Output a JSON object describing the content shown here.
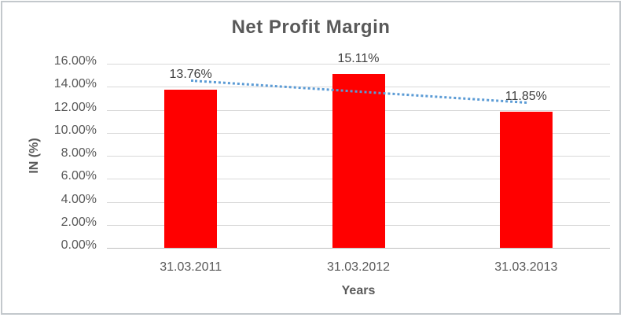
{
  "chart_data": {
    "type": "bar",
    "title": "Net Profit Margin",
    "xlabel": "Years",
    "ylabel": "IN (%)",
    "categories": [
      "31.03.2011",
      "31.03.2012",
      "31.03.2013"
    ],
    "values": [
      13.76,
      15.11,
      11.85
    ],
    "data_labels": [
      "13.76%",
      "15.11%",
      "11.85%"
    ],
    "ylim": [
      0,
      16
    ],
    "ytick_step": 2,
    "ytick_labels": [
      "0.00%",
      "2.00%",
      "4.00%",
      "6.00%",
      "8.00%",
      "10.00%",
      "12.00%",
      "14.00%",
      "16.00%"
    ],
    "grid": true,
    "legend": "none",
    "bar_color": "#FF0000",
    "trendline": {
      "type": "linear",
      "style": "dotted",
      "color": "#5B9BD5",
      "start_value_pct": 14.53,
      "end_value_pct": 12.62
    }
  },
  "colors": {
    "title_text": "#595959",
    "axis_text": "#595959",
    "data_label_text": "#404040",
    "gridline": "#D9D9D9",
    "axis_line": "#BFBFBF",
    "frame_border": "#C3C8CC",
    "background": "#FFFFFF"
  }
}
